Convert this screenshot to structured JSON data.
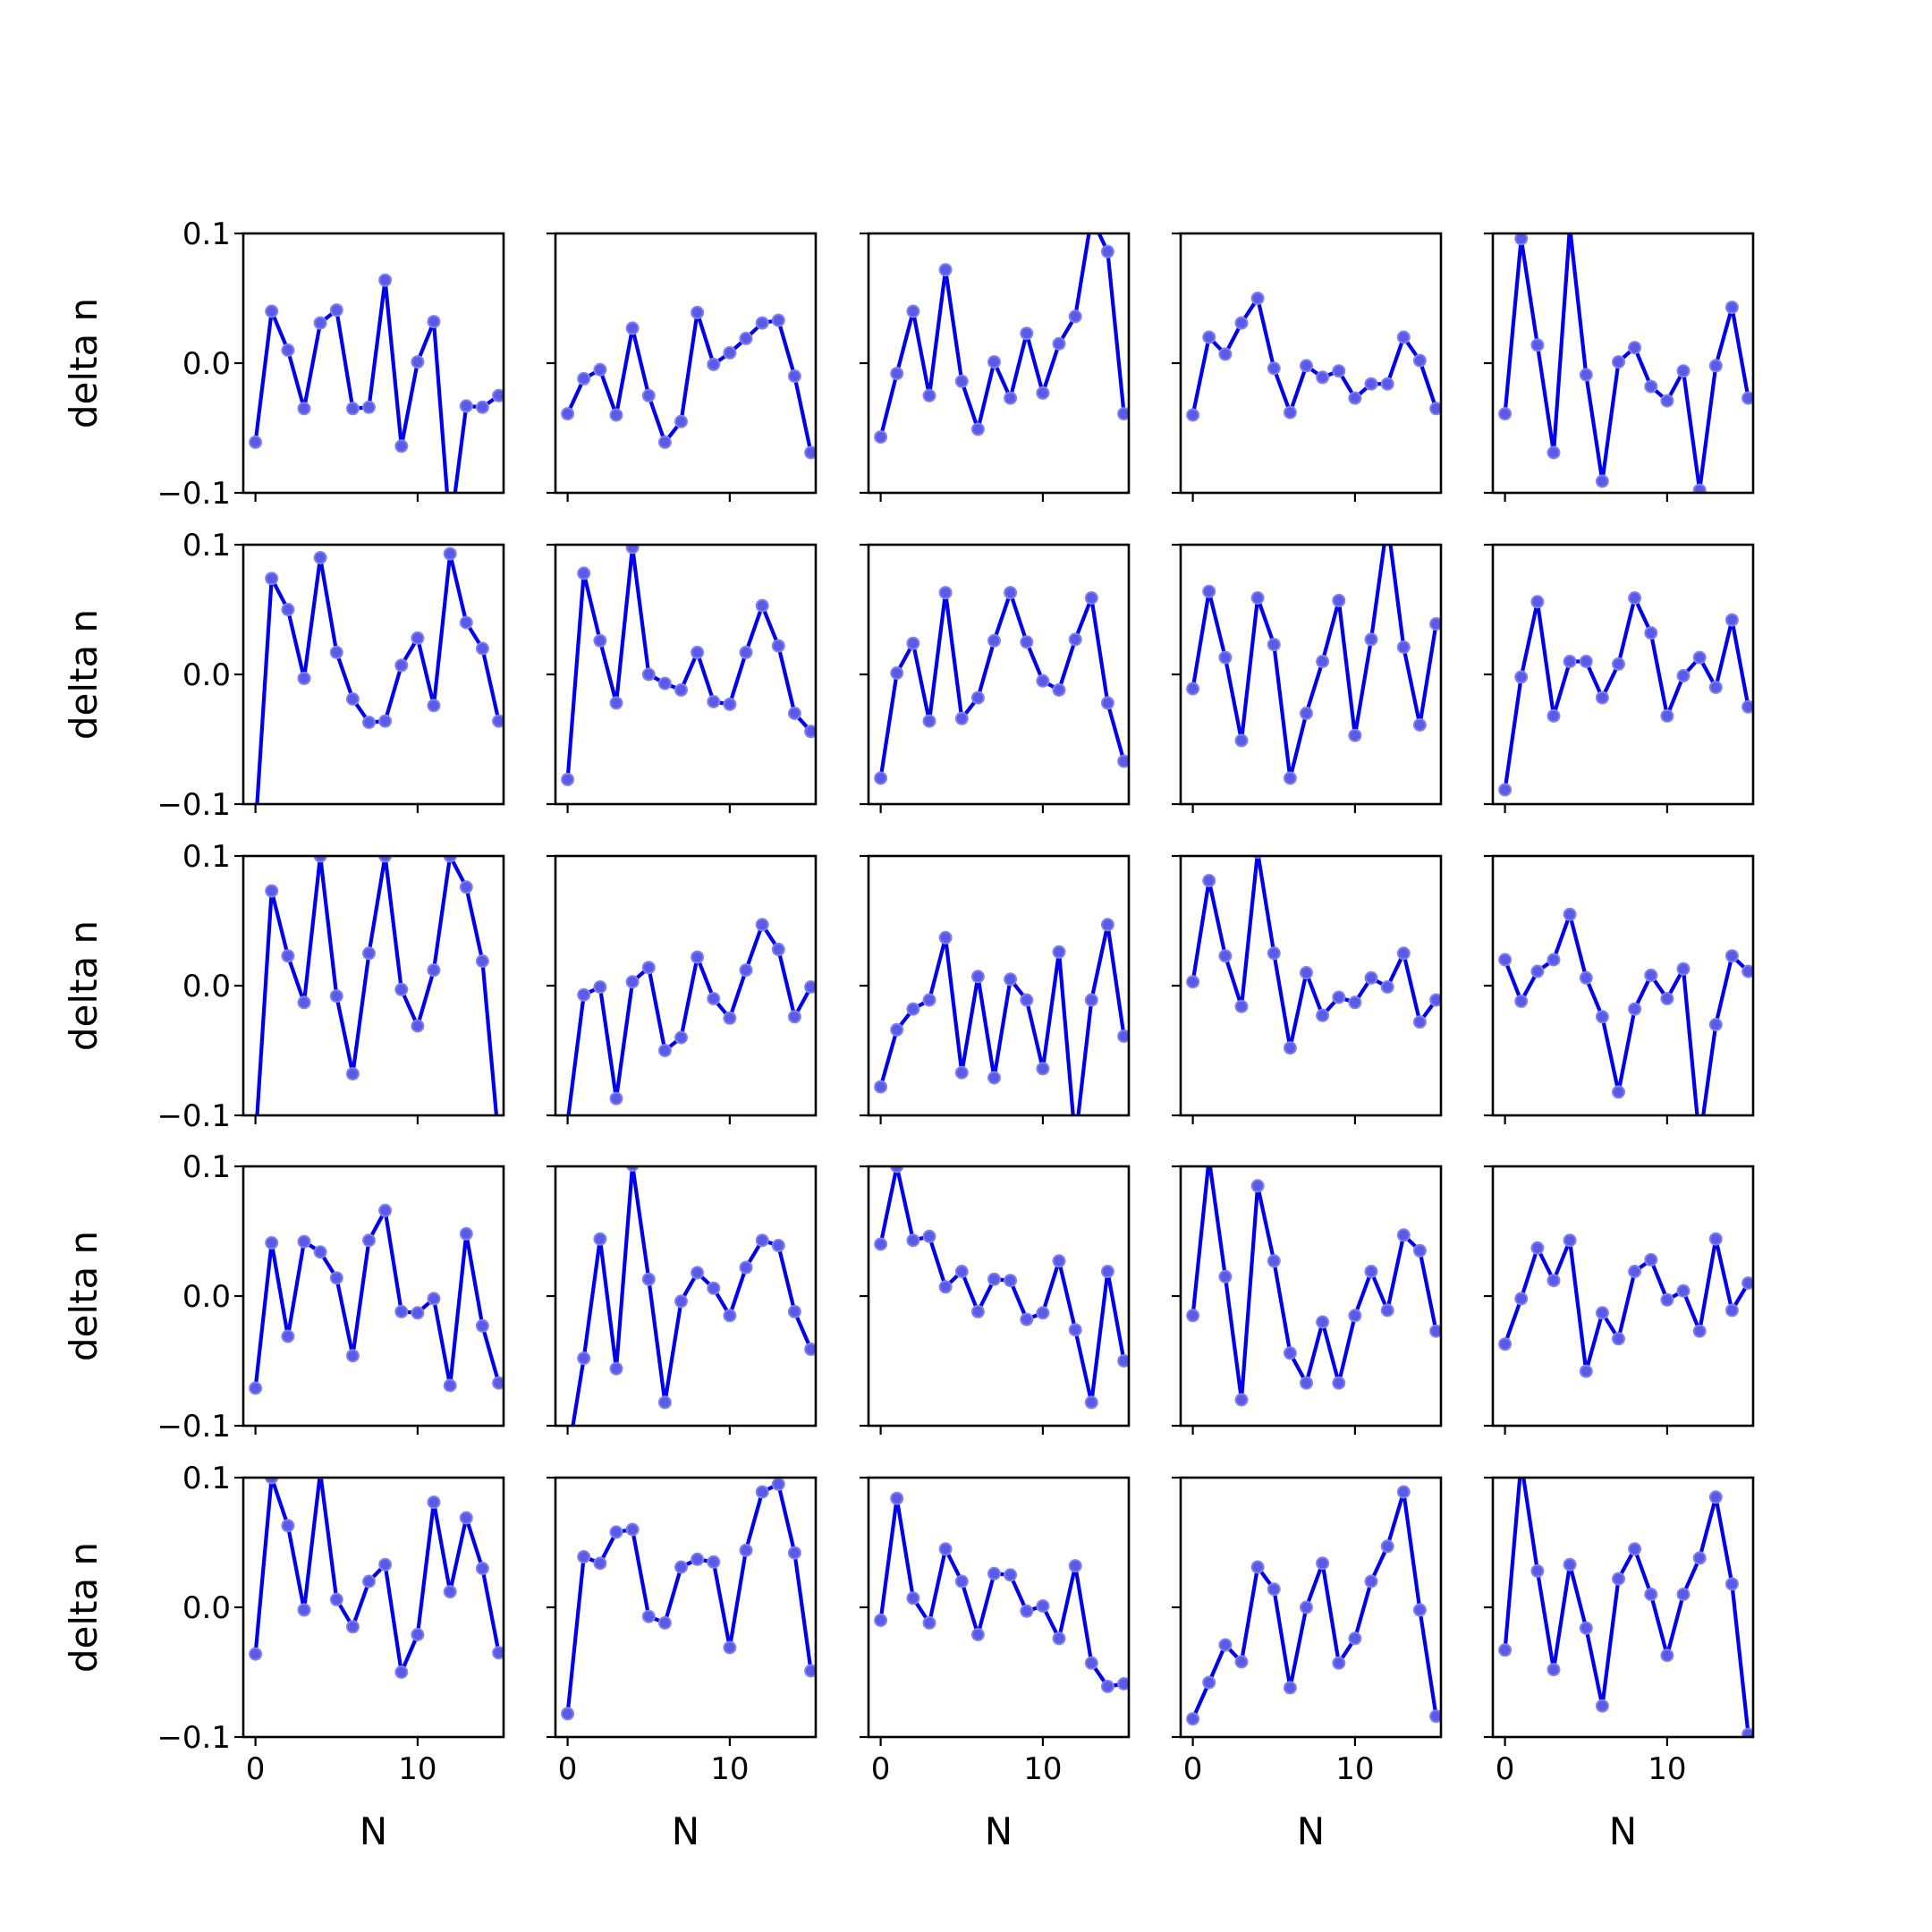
{
  "chart_data": {
    "type": "line",
    "layout": "grid",
    "grid_rows": 5,
    "grid_cols": 5,
    "xlabel": "N",
    "ylabel": "delta n",
    "xlim": [
      -0.75,
      15.3
    ],
    "ylim": [
      -0.1,
      0.1
    ],
    "xticks": [
      0,
      10
    ],
    "xtick_labels": [
      "0",
      "10"
    ],
    "yticks": [
      -0.1,
      0.0,
      0.1
    ],
    "ytick_labels": [
      "−0.1",
      "0.0",
      "0.1"
    ],
    "grid": false,
    "legend": "none",
    "colors": {
      "line": "#0000ee",
      "marker": "#5a5ae8"
    },
    "x": [
      0,
      1,
      2,
      3,
      4,
      5,
      6,
      7,
      8,
      9,
      10,
      11,
      12,
      13,
      14,
      15
    ],
    "panels": [
      {
        "values": [
          -0.061,
          0.04,
          0.01,
          -0.035,
          0.031,
          0.041,
          -0.035,
          -0.034,
          0.064,
          -0.064,
          0.001,
          0.032,
          -0.13,
          -0.033,
          -0.034,
          -0.025
        ]
      },
      {
        "values": [
          -0.039,
          -0.012,
          -0.005,
          -0.04,
          0.027,
          -0.025,
          -0.061,
          -0.045,
          0.039,
          -0.001,
          0.008,
          0.019,
          0.031,
          0.033,
          -0.01,
          -0.069
        ]
      },
      {
        "values": [
          -0.057,
          -0.008,
          0.04,
          -0.025,
          0.072,
          -0.014,
          -0.051,
          0.001,
          -0.027,
          0.023,
          -0.023,
          0.015,
          0.036,
          0.112,
          0.086,
          -0.039
        ]
      },
      {
        "values": [
          -0.04,
          0.02,
          0.007,
          0.031,
          0.05,
          -0.004,
          -0.038,
          -0.002,
          -0.011,
          -0.006,
          -0.027,
          -0.016,
          -0.016,
          0.02,
          0.002,
          -0.035
        ]
      },
      {
        "values": [
          -0.039,
          0.096,
          0.014,
          -0.069,
          0.105,
          -0.009,
          -0.091,
          0.001,
          0.012,
          -0.018,
          -0.029,
          -0.006,
          -0.098,
          -0.002,
          0.043,
          -0.027
        ]
      },
      {
        "values": [
          -0.12,
          0.074,
          0.05,
          -0.003,
          0.09,
          0.017,
          -0.019,
          -0.037,
          -0.036,
          0.007,
          0.028,
          -0.024,
          0.093,
          0.04,
          0.02,
          -0.036
        ]
      },
      {
        "values": [
          -0.081,
          0.078,
          0.026,
          -0.022,
          0.098,
          0.0,
          -0.007,
          -0.012,
          0.017,
          -0.021,
          -0.023,
          0.017,
          0.053,
          0.022,
          -0.03,
          -0.044
        ]
      },
      {
        "values": [
          -0.08,
          0.001,
          0.024,
          -0.036,
          0.063,
          -0.034,
          -0.018,
          0.026,
          0.063,
          0.025,
          -0.005,
          -0.012,
          0.027,
          0.059,
          -0.022,
          -0.067
        ]
      },
      {
        "values": [
          -0.011,
          0.064,
          0.013,
          -0.051,
          0.059,
          0.023,
          -0.08,
          -0.03,
          0.01,
          0.057,
          -0.047,
          0.027,
          0.118,
          0.021,
          -0.039,
          0.039
        ]
      },
      {
        "values": [
          -0.089,
          -0.002,
          0.056,
          -0.032,
          0.01,
          0.01,
          -0.018,
          0.008,
          0.059,
          0.032,
          -0.032,
          -0.001,
          0.013,
          -0.01,
          0.042,
          -0.025
        ]
      },
      {
        "values": [
          -0.12,
          0.073,
          0.023,
          -0.013,
          0.1,
          -0.008,
          -0.068,
          0.025,
          0.1,
          -0.003,
          -0.031,
          0.012,
          0.1,
          0.076,
          0.019,
          -0.12
        ]
      },
      {
        "values": [
          -0.105,
          -0.007,
          -0.001,
          -0.087,
          0.003,
          0.014,
          -0.05,
          -0.04,
          0.022,
          -0.01,
          -0.025,
          0.012,
          0.047,
          0.028,
          -0.024,
          -0.001
        ]
      },
      {
        "values": [
          -0.078,
          -0.034,
          -0.018,
          -0.011,
          0.037,
          -0.067,
          0.007,
          -0.071,
          0.005,
          -0.011,
          -0.064,
          0.026,
          -0.12,
          -0.011,
          0.047,
          -0.039
        ]
      },
      {
        "values": [
          0.003,
          0.081,
          0.023,
          -0.016,
          0.103,
          0.025,
          -0.048,
          0.01,
          -0.023,
          -0.009,
          -0.013,
          0.006,
          -0.001,
          0.025,
          -0.028,
          -0.011
        ]
      },
      {
        "values": [
          0.02,
          -0.012,
          0.011,
          0.02,
          0.055,
          0.006,
          -0.024,
          -0.082,
          -0.018,
          0.008,
          -0.01,
          0.013,
          -0.12,
          -0.03,
          0.023,
          0.011
        ]
      },
      {
        "values": [
          -0.071,
          0.041,
          -0.031,
          0.042,
          0.034,
          0.014,
          -0.046,
          0.043,
          0.066,
          -0.012,
          -0.013,
          -0.002,
          -0.069,
          0.048,
          -0.023,
          -0.067
        ]
      },
      {
        "values": [
          -0.125,
          -0.048,
          0.044,
          -0.056,
          0.101,
          0.013,
          -0.082,
          -0.004,
          0.018,
          0.006,
          -0.015,
          0.022,
          0.043,
          0.039,
          -0.012,
          -0.041
        ]
      },
      {
        "values": [
          0.04,
          0.1,
          0.043,
          0.046,
          0.007,
          0.019,
          -0.012,
          0.013,
          0.012,
          -0.018,
          -0.013,
          0.027,
          -0.026,
          -0.082,
          0.019,
          -0.05
        ]
      },
      {
        "values": [
          -0.015,
          0.106,
          0.015,
          -0.08,
          0.085,
          0.027,
          -0.044,
          -0.067,
          -0.02,
          -0.067,
          -0.015,
          0.019,
          -0.011,
          0.047,
          0.035,
          -0.027
        ]
      },
      {
        "values": [
          -0.037,
          -0.002,
          0.037,
          0.012,
          0.043,
          -0.058,
          -0.013,
          -0.033,
          0.019,
          0.028,
          -0.003,
          0.004,
          -0.027,
          0.044,
          -0.011,
          0.01
        ]
      },
      {
        "values": [
          -0.036,
          0.1,
          0.063,
          -0.002,
          0.104,
          0.006,
          -0.015,
          0.02,
          0.033,
          -0.05,
          -0.021,
          0.081,
          0.012,
          0.069,
          0.03,
          -0.035
        ]
      },
      {
        "values": [
          -0.082,
          0.039,
          0.034,
          0.058,
          0.06,
          -0.007,
          -0.012,
          0.031,
          0.037,
          0.035,
          -0.031,
          0.044,
          0.089,
          0.095,
          0.042,
          -0.049
        ]
      },
      {
        "values": [
          -0.01,
          0.084,
          0.007,
          -0.012,
          0.045,
          0.02,
          -0.021,
          0.026,
          0.025,
          -0.003,
          0.001,
          -0.024,
          0.032,
          -0.043,
          -0.061,
          -0.059
        ]
      },
      {
        "values": [
          -0.086,
          -0.058,
          -0.029,
          -0.042,
          0.031,
          0.014,
          -0.062,
          0.0,
          0.034,
          -0.043,
          -0.024,
          0.02,
          0.047,
          0.089,
          -0.002,
          -0.084
        ]
      },
      {
        "values": [
          -0.033,
          0.112,
          0.028,
          -0.048,
          0.033,
          -0.016,
          -0.076,
          0.022,
          0.045,
          0.01,
          -0.037,
          0.01,
          0.038,
          0.085,
          0.018,
          -0.098
        ]
      }
    ]
  }
}
